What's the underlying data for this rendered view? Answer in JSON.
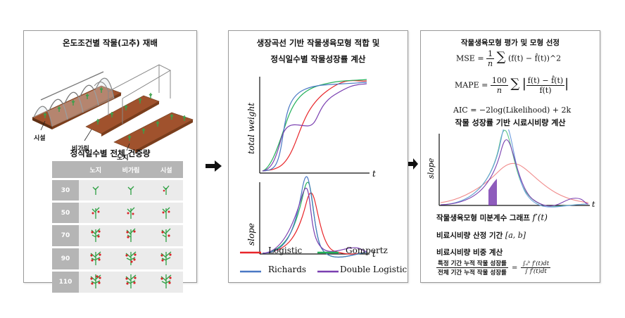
{
  "panel1": {
    "title": "온도조건별 작물(고추) 재배",
    "labels": {
      "facility": "시설",
      "rain_shelter": "비가림",
      "open_field": "노지"
    },
    "table_title": "정식일수별 전체 건중량",
    "columns": [
      "노지",
      "비가림",
      "시설"
    ],
    "rows": [
      "30",
      "50",
      "70",
      "90",
      "110"
    ]
  },
  "panel2": {
    "title_line1": "생장곡선 기반 작물생육모형 적합 및",
    "title_line2": "정식일수별 작물성장률 계산",
    "top_ylabel": "total weight",
    "top_xlabel": "t",
    "bottom_ylabel": "slope",
    "bottom_xlabel": "t",
    "legend": [
      {
        "name": "Logistic",
        "color": "#e8262a"
      },
      {
        "name": "Gompertz",
        "color": "#22b05a"
      },
      {
        "name": "Richards",
        "color": "#4a78c4"
      },
      {
        "name": "Double Logistic",
        "color": "#7a3fb0"
      }
    ]
  },
  "panel3": {
    "title": "작물생육모형 평가 및 모형 선정",
    "mse_lhs": "MSE =",
    "mse_body": "(f(t) − f̂(t))^2",
    "mape_lhs": "MAPE =",
    "mape_num": "f(t) − f̂(t)",
    "mape_den": "f(t)",
    "aic": "AIC = −2log(Likelihood) + 2k",
    "subtitle": "작물 성장률 기반 시료시비량 계산",
    "chart_ylabel": "slope",
    "chart_xlabel": "t",
    "derivative_text": "작물생육모형 미분계수 그래프",
    "derivative_symbol": "f′(t)",
    "period_text": "비료시비량 산정 기간",
    "period_symbol": "[a, b]",
    "ratio_title": "비료시비량 비중 계산",
    "ratio_num": "특정 기간 누적 작물 성장률",
    "ratio_den": "전체 기간 누적 작물 성장률",
    "integral_num": "∫ₐᵇ f′(t)dt",
    "integral_den": "∫ f′(t)dt"
  }
}
